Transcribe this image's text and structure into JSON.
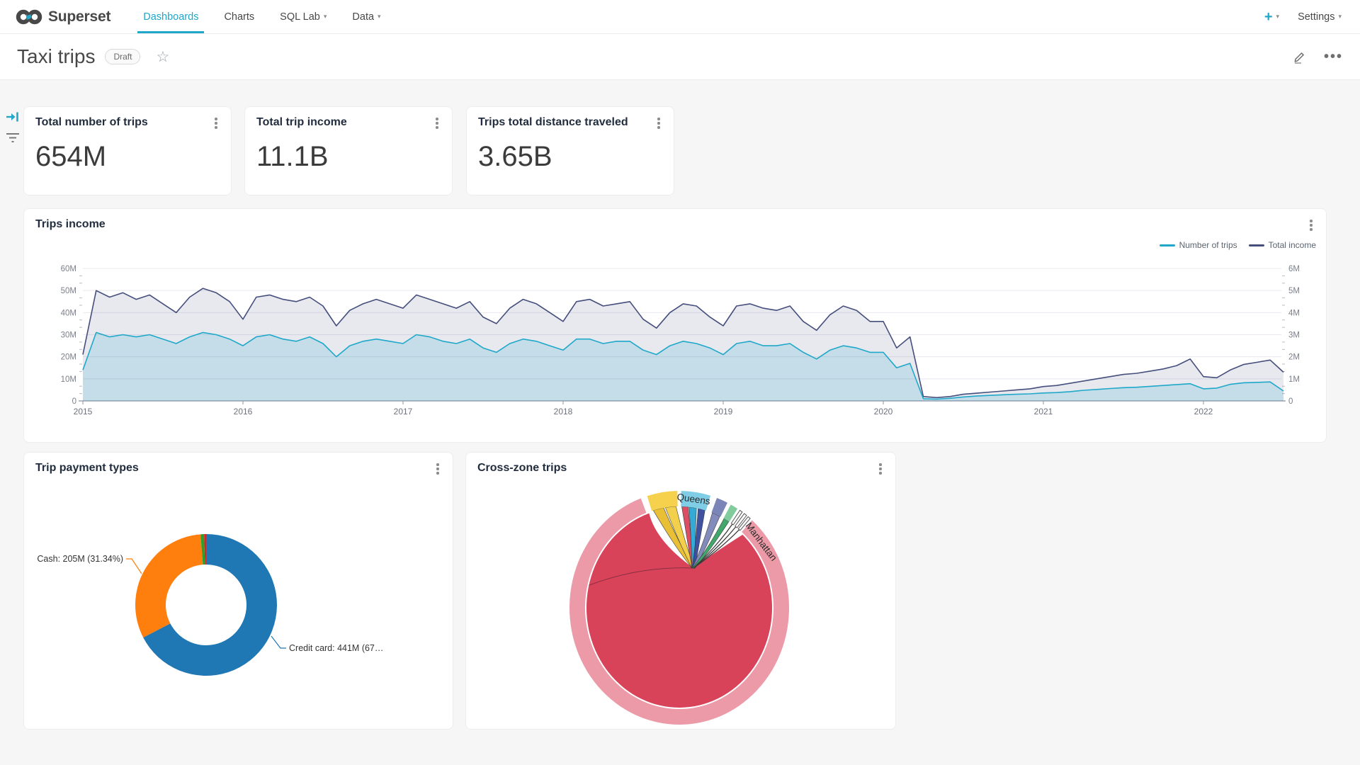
{
  "nav": {
    "brand": "Superset",
    "items": [
      {
        "label": "Dashboards",
        "active": true
      },
      {
        "label": "Charts",
        "active": false
      },
      {
        "label": "SQL Lab",
        "active": false,
        "caret": true
      },
      {
        "label": "Data",
        "active": false,
        "caret": true
      }
    ],
    "plus_label": "+",
    "settings_label": "Settings",
    "brand_color": "#20a7c9"
  },
  "header": {
    "title": "Taxi trips",
    "badge": "Draft",
    "menu_dots": "…"
  },
  "kpis": [
    {
      "title": "Total number of trips",
      "value": "654M"
    },
    {
      "title": "Total trip income",
      "value": "11.1B"
    },
    {
      "title": "Trips total distance traveled",
      "value": "3.65B"
    }
  ],
  "trips_income": {
    "title": "Trips income",
    "chart_data": {
      "type": "line",
      "x_start_year": 2015,
      "x_step_months": 1,
      "x_ticks": [
        "2015",
        "2016",
        "2017",
        "2018",
        "2019",
        "2020",
        "2021",
        "2022"
      ],
      "y_left_ticks": [
        "0",
        "10M",
        "20M",
        "30M",
        "40M",
        "50M",
        "60M"
      ],
      "y_right_ticks": [
        "0",
        "1M",
        "2M",
        "3M",
        "4M",
        "5M",
        "6M"
      ],
      "ylim_left": [
        0,
        60
      ],
      "ylim_right": [
        0,
        6
      ],
      "grid": true,
      "legend_position": "top-right",
      "series": [
        {
          "name": "Number of trips",
          "color": "#1FA8C9",
          "fill": "rgba(31,168,201,0.18)",
          "values": [
            14,
            31,
            29,
            30,
            29,
            30,
            28,
            26,
            29,
            31,
            30,
            28,
            25,
            29,
            30,
            28,
            27,
            29,
            26,
            20,
            25,
            27,
            28,
            27,
            26,
            30,
            29,
            27,
            26,
            28,
            24,
            22,
            26,
            28,
            27,
            25,
            23,
            28,
            28,
            26,
            27,
            27,
            23,
            21,
            25,
            27,
            26,
            24,
            21,
            26,
            27,
            25,
            25,
            26,
            22,
            19,
            23,
            25,
            24,
            22,
            22,
            15,
            17,
            1,
            0.8,
            1.2,
            1.8,
            2.2,
            2.5,
            2.8,
            3,
            3.2,
            3.6,
            3.8,
            4.2,
            4.8,
            5.2,
            5.6,
            6,
            6.2,
            6.6,
            7,
            7.4,
            7.8,
            5.5,
            5.8,
            7.5,
            8.2,
            8.4,
            8.6,
            4.5
          ]
        },
        {
          "name": "Total income",
          "color": "#454E7C",
          "fill": "rgba(69,78,124,0.12)",
          "values": [
            21,
            50,
            47,
            49,
            46,
            48,
            44,
            40,
            47,
            51,
            49,
            45,
            37,
            47,
            48,
            46,
            45,
            47,
            43,
            34,
            41,
            44,
            46,
            44,
            42,
            48,
            46,
            44,
            42,
            45,
            38,
            35,
            42,
            46,
            44,
            40,
            36,
            45,
            46,
            43,
            44,
            45,
            37,
            33,
            40,
            44,
            43,
            38,
            34,
            43,
            44,
            42,
            41,
            43,
            36,
            32,
            39,
            43,
            41,
            36,
            36,
            24,
            29,
            2,
            1.5,
            2,
            3,
            3.5,
            4,
            4.5,
            5,
            5.5,
            6.5,
            7,
            8,
            9,
            10,
            11,
            12,
            12.5,
            13.5,
            14.5,
            16,
            19,
            11,
            10.5,
            14,
            16.5,
            17.5,
            18.5,
            13
          ]
        }
      ]
    }
  },
  "payment_types": {
    "title": "Trip payment types",
    "chart_data": {
      "type": "pie",
      "donut": true,
      "slices": [
        {
          "label": "Credit card",
          "value": "441M",
          "pct": 67.4,
          "color": "#1f77b4"
        },
        {
          "label": "Cash",
          "value": "205M",
          "pct": 31.34,
          "color": "#ff7f0e"
        },
        {
          "label": "",
          "value": "",
          "pct": 0.8,
          "color": "#2ca02c"
        },
        {
          "label": "",
          "value": "",
          "pct": 0.46,
          "color": "#d62728"
        }
      ],
      "callouts": {
        "cash": "Cash: 205M (31.34%)",
        "credit": "Credit card: 441M (67…"
      }
    }
  },
  "cross_zone": {
    "title": "Cross-zone trips",
    "chart_data": {
      "type": "chord",
      "dominant_zone": "Manhattan",
      "zones": [
        {
          "name": "Manhattan",
          "color": "#EC9AA7",
          "start": 41.5,
          "end": 339.5,
          "label_angle": 53
        },
        {
          "name": "",
          "color": "#F6D14E",
          "start": 343,
          "end": 359
        },
        {
          "name": "Queens",
          "color": "#7FCEE6",
          "start": 1,
          "end": 16.5,
          "label_angle": 8
        },
        {
          "name": "",
          "color": "#7B85B8",
          "start": 20,
          "end": 26
        },
        {
          "name": "",
          "color": "#82CB9C",
          "start": 28,
          "end": 32
        }
      ],
      "slivers": [
        [
          33.5,
          35
        ],
        [
          36.3,
          37.8
        ],
        [
          38.8,
          40.2
        ]
      ],
      "self_chord_color": "#D8435A",
      "chords": [
        {
          "s": 344,
          "e": 350.5,
          "c": "#E8BC2B"
        },
        {
          "s": 351.5,
          "e": 358,
          "c": "#F2CE41"
        },
        {
          "s": 1.5,
          "e": 5.5,
          "c": "#D8435A"
        },
        {
          "s": 6,
          "e": 10.5,
          "c": "#29A7D4"
        },
        {
          "s": 11.5,
          "e": 15.8,
          "c": "#35499B"
        },
        {
          "s": 20.5,
          "e": 25.5,
          "c": "#7B85B8"
        },
        {
          "s": 28.3,
          "e": 31.7,
          "c": "#37A263"
        }
      ],
      "thin_chords": [
        34.3,
        36.9,
        39.5
      ]
    }
  }
}
